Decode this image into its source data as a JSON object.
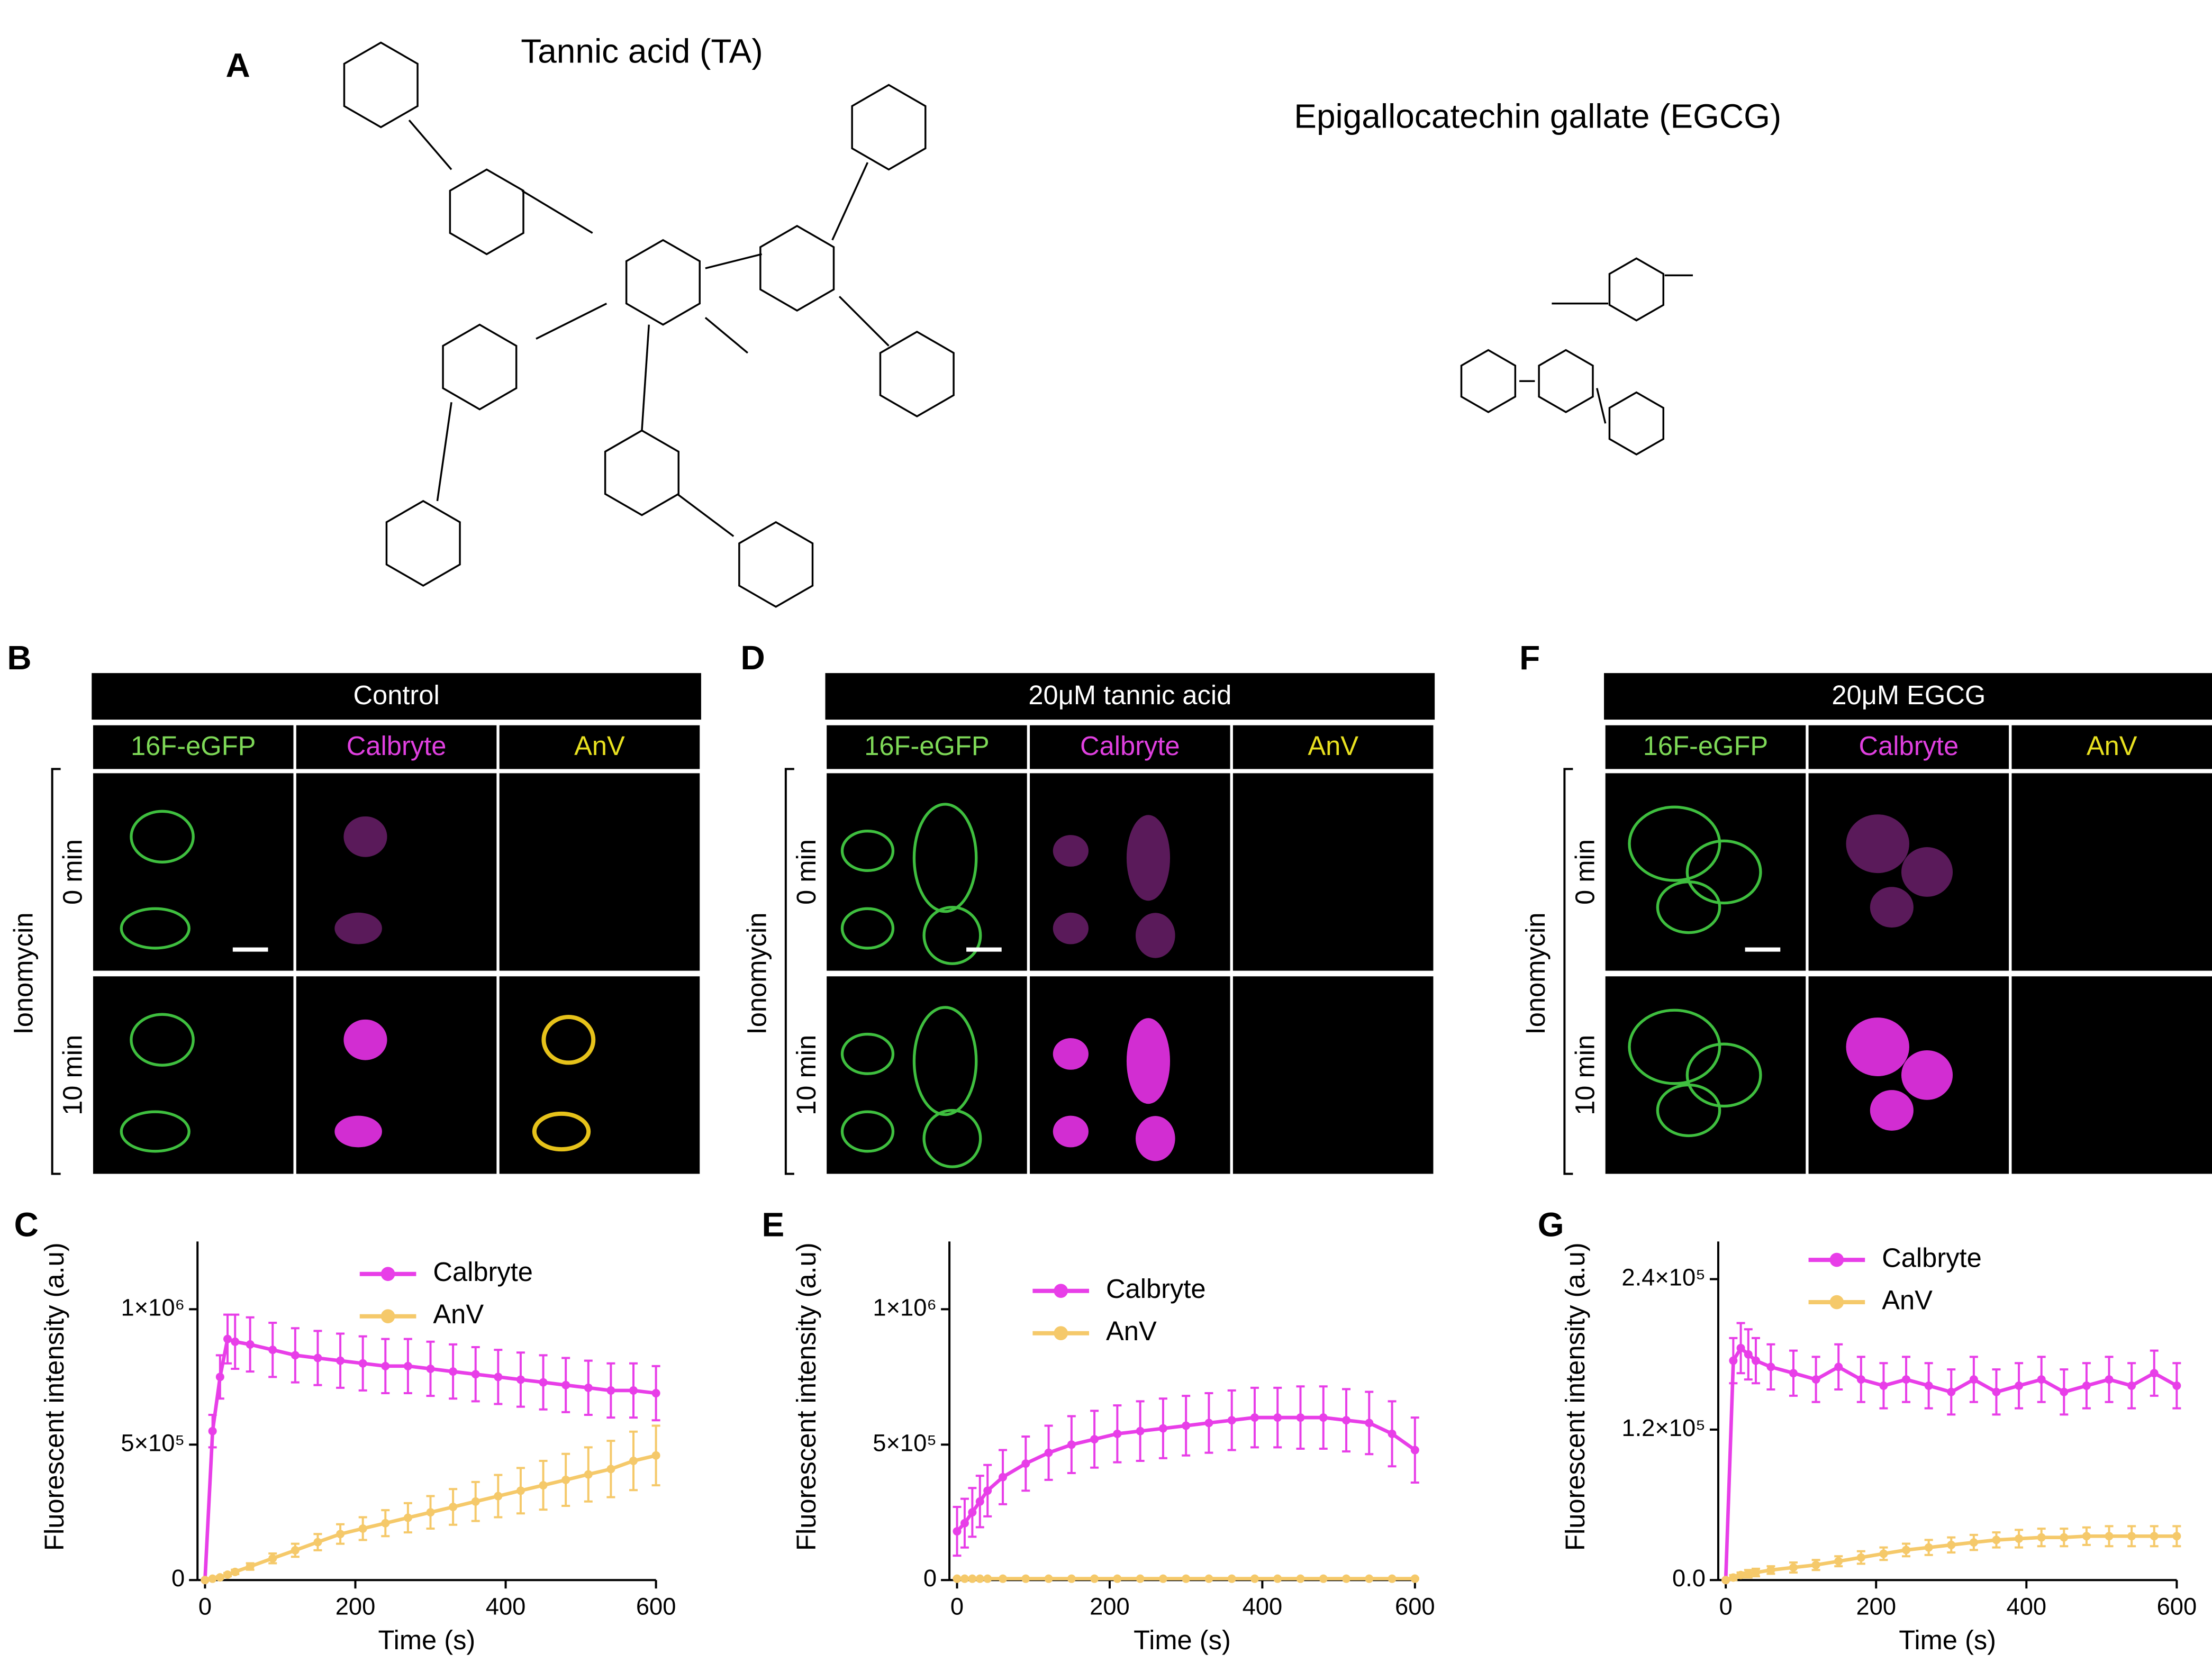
{
  "structures": {
    "label": "A",
    "compounds": [
      "Tannic acid (TA)",
      "Epigallocatechin gallate (EGCG)"
    ]
  },
  "imaging": [
    {
      "label": "B",
      "condition": "Control",
      "channels": [
        "16F-eGFP",
        "Calbryte",
        "AnV"
      ],
      "treatment": "Ionomycin",
      "times": [
        "0 min",
        "10 min"
      ]
    },
    {
      "label": "D",
      "condition": "20μM tannic acid",
      "channels": [
        "16F-eGFP",
        "Calbryte",
        "AnV"
      ],
      "treatment": "Ionomycin",
      "times": [
        "0 min",
        "10 min"
      ]
    },
    {
      "label": "F",
      "condition": "20μM EGCG",
      "channels": [
        "16F-eGFP",
        "Calbryte",
        "AnV"
      ],
      "treatment": "Ionomycin",
      "times": [
        "0 min",
        "10 min"
      ]
    }
  ],
  "chart_data": [
    {
      "type": "line",
      "label": "C",
      "xlabel": "Time (s)",
      "ylabel": "Fluorescent intensity (a.u)",
      "x": [
        0,
        10,
        20,
        30,
        40,
        60,
        90,
        120,
        150,
        180,
        210,
        240,
        270,
        300,
        330,
        360,
        390,
        420,
        450,
        480,
        510,
        540,
        570,
        600
      ],
      "xlim": [
        -10,
        600
      ],
      "xticks": [
        0,
        200,
        400,
        600
      ],
      "ylim": [
        0,
        1250000
      ],
      "yticks": [
        0,
        {
          "value": 500000,
          "label": "5×10⁵"
        },
        {
          "value": 1000000,
          "label": "1×10⁶"
        }
      ],
      "series": [
        {
          "name": "Calbryte",
          "color": "#e83ee8",
          "values": [
            0,
            550000,
            750000,
            890000,
            880000,
            870000,
            850000,
            830000,
            820000,
            810000,
            800000,
            790000,
            790000,
            780000,
            770000,
            760000,
            750000,
            740000,
            730000,
            720000,
            710000,
            700000,
            700000,
            690000
          ],
          "errors": [
            0,
            60000,
            80000,
            90000,
            100000,
            100000,
            100000,
            100000,
            100000,
            100000,
            100000,
            100000,
            100000,
            100000,
            100000,
            100000,
            100000,
            100000,
            100000,
            100000,
            100000,
            100000,
            100000,
            100000
          ]
        },
        {
          "name": "AnV",
          "color": "#f5c96a",
          "values": [
            0,
            5000,
            10000,
            20000,
            30000,
            50000,
            80000,
            110000,
            140000,
            170000,
            190000,
            210000,
            230000,
            250000,
            270000,
            290000,
            310000,
            330000,
            350000,
            370000,
            390000,
            410000,
            440000,
            460000
          ],
          "errors": [
            0,
            2000,
            4000,
            6000,
            8000,
            12000,
            18000,
            24000,
            30000,
            36000,
            42000,
            48000,
            54000,
            60000,
            66000,
            72000,
            78000,
            84000,
            90000,
            96000,
            100000,
            104000,
            108000,
            110000
          ]
        }
      ]
    },
    {
      "type": "line",
      "label": "E",
      "xlabel": "Time (s)",
      "ylabel": "Fluorescent intensity (a.u)",
      "x": [
        0,
        10,
        20,
        30,
        40,
        60,
        90,
        120,
        150,
        180,
        210,
        240,
        270,
        300,
        330,
        360,
        390,
        420,
        450,
        480,
        510,
        540,
        570,
        600
      ],
      "xlim": [
        -10,
        600
      ],
      "xticks": [
        0,
        200,
        400,
        600
      ],
      "ylim": [
        0,
        1250000
      ],
      "yticks": [
        0,
        {
          "value": 500000,
          "label": "5×10⁵"
        },
        {
          "value": 1000000,
          "label": "1×10⁶"
        }
      ],
      "series": [
        {
          "name": "Calbryte",
          "color": "#e83ee8",
          "values": [
            180000,
            210000,
            250000,
            290000,
            330000,
            380000,
            430000,
            470000,
            500000,
            520000,
            540000,
            550000,
            560000,
            570000,
            580000,
            590000,
            600000,
            600000,
            600000,
            600000,
            590000,
            580000,
            540000,
            480000
          ],
          "errors": [
            90000,
            90000,
            90000,
            95000,
            95000,
            100000,
            100000,
            100000,
            105000,
            105000,
            105000,
            110000,
            110000,
            110000,
            110000,
            110000,
            110000,
            110000,
            115000,
            115000,
            115000,
            115000,
            120000,
            120000
          ]
        },
        {
          "name": "AnV",
          "color": "#f5c96a",
          "values": [
            5000,
            5000,
            5000,
            5000,
            5000,
            5000,
            5000,
            5000,
            5000,
            5000,
            5000,
            5000,
            5000,
            5000,
            5000,
            5000,
            5000,
            5000,
            5000,
            5000,
            5000,
            5000,
            5000,
            5000
          ],
          "errors": [
            2000,
            2000,
            2000,
            2000,
            2000,
            2000,
            2000,
            2000,
            2000,
            2000,
            2000,
            2000,
            2000,
            2000,
            2000,
            2000,
            2000,
            2000,
            2000,
            2000,
            2000,
            2000,
            2000,
            2000
          ]
        }
      ]
    },
    {
      "type": "line",
      "label": "G",
      "xlabel": "Time (s)",
      "ylabel": "Fluorescent intensity (a.u)",
      "x": [
        0,
        10,
        20,
        30,
        40,
        60,
        90,
        120,
        150,
        180,
        210,
        240,
        270,
        300,
        330,
        360,
        390,
        420,
        450,
        480,
        510,
        540,
        570,
        600
      ],
      "xlim": [
        -10,
        600
      ],
      "xticks": [
        0,
        200,
        400,
        600
      ],
      "ylim": [
        0,
        270000
      ],
      "yticks": [
        {
          "value": 0,
          "label": "0.0"
        },
        {
          "value": 120000,
          "label": "1.2×10⁵"
        },
        {
          "value": 240000,
          "label": "2.4×10⁵"
        }
      ],
      "series": [
        {
          "name": "Calbryte",
          "color": "#e83ee8",
          "values": [
            0,
            175000,
            185000,
            180000,
            175000,
            170000,
            165000,
            160000,
            170000,
            160000,
            155000,
            160000,
            155000,
            150000,
            160000,
            150000,
            155000,
            160000,
            150000,
            155000,
            160000,
            155000,
            165000,
            155000
          ],
          "errors": [
            0,
            18000,
            20000,
            20000,
            18000,
            18000,
            18000,
            18000,
            18000,
            18000,
            18000,
            18000,
            18000,
            18000,
            18000,
            18000,
            18000,
            18000,
            18000,
            18000,
            18000,
            18000,
            18000,
            18000
          ]
        },
        {
          "name": "AnV",
          "color": "#f5c96a",
          "values": [
            0,
            2000,
            4000,
            5000,
            6000,
            8000,
            10000,
            12000,
            15000,
            18000,
            21000,
            24000,
            26000,
            28000,
            30000,
            32000,
            33000,
            34000,
            34000,
            35000,
            35000,
            35000,
            35000,
            35000
          ],
          "errors": [
            0,
            2000,
            2000,
            3000,
            3000,
            3000,
            4000,
            4000,
            4000,
            5000,
            5000,
            5000,
            6000,
            6000,
            6000,
            6000,
            7000,
            7000,
            7000,
            7000,
            8000,
            8000,
            8000,
            8000
          ]
        }
      ]
    }
  ]
}
